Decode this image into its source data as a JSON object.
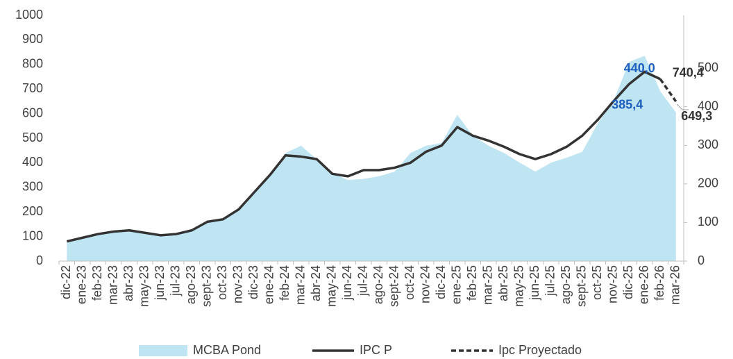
{
  "chart_data": {
    "type": "combo",
    "categories": [
      "dic-22",
      "ene-23",
      "feb-23",
      "mar-23",
      "abr-23",
      "may-23",
      "jun-23",
      "jul-23",
      "ago-23",
      "sept-23",
      "oct-23",
      "nov-23",
      "dic-23",
      "ene-24",
      "feb-24",
      "mar-24",
      "abr-24",
      "may-24",
      "jun-24",
      "jul-24",
      "ago-24",
      "sept-24",
      "oct-24",
      "nov-24",
      "dic-24",
      "ene-25",
      "feb-25",
      "mar-25",
      "abr-25",
      "may-25",
      "jun-25",
      "jul-25",
      "ago-25",
      "sept-25",
      "oct-25",
      "nov-25",
      "dic-25",
      "ene-26",
      "feb-26",
      "mar-26"
    ],
    "series": [
      {
        "name": "MCBA Pond",
        "type": "area",
        "axis": "y2",
        "color": "#bfe4f2",
        "values": [
          51,
          60,
          70,
          76,
          80,
          73,
          67,
          70,
          80,
          102,
          108,
          134,
          178,
          223,
          280,
          299,
          264,
          229,
          210,
          213,
          220,
          232,
          280,
          299,
          306,
          379,
          325,
          299,
          280,
          255,
          232,
          255,
          268,
          283,
          357,
          414,
          516,
          532,
          440,
          385.4
        ],
        "value_labels": [
          null,
          null,
          null,
          null,
          null,
          null,
          null,
          null,
          null,
          null,
          null,
          null,
          null,
          null,
          null,
          null,
          null,
          null,
          null,
          null,
          null,
          null,
          null,
          null,
          null,
          null,
          null,
          null,
          null,
          null,
          null,
          null,
          null,
          null,
          null,
          null,
          null,
          null,
          "440,0",
          "385,4"
        ],
        "label_color": "#1f5fbf"
      },
      {
        "name": "IPC P",
        "type": "line",
        "color": "#333333",
        "values": [
          80,
          95,
          110,
          120,
          125,
          115,
          105,
          110,
          125,
          160,
          170,
          210,
          280,
          350,
          430,
          425,
          415,
          355,
          345,
          370,
          370,
          380,
          400,
          445,
          470,
          545,
          510,
          490,
          465,
          435,
          415,
          435,
          465,
          510,
          575,
          650,
          720,
          770,
          740.4,
          null
        ]
      },
      {
        "name": "Ipc Proyectado",
        "type": "line",
        "dashed": true,
        "color": "#333333",
        "values": [
          null,
          null,
          null,
          null,
          null,
          null,
          null,
          null,
          null,
          null,
          null,
          null,
          null,
          null,
          null,
          null,
          null,
          null,
          null,
          null,
          null,
          null,
          null,
          null,
          null,
          null,
          null,
          null,
          null,
          null,
          null,
          null,
          null,
          null,
          null,
          null,
          null,
          null,
          740.4,
          649.3
        ],
        "value_labels": [
          null,
          null,
          null,
          null,
          null,
          null,
          null,
          null,
          null,
          null,
          null,
          null,
          null,
          null,
          null,
          null,
          null,
          null,
          null,
          null,
          null,
          null,
          null,
          null,
          null,
          null,
          null,
          null,
          null,
          null,
          null,
          null,
          null,
          null,
          null,
          null,
          null,
          null,
          "740,4",
          "649,3"
        ],
        "label_color": "#333333"
      }
    ],
    "ylim": [
      0,
      1000
    ],
    "yticks": [
      0,
      100,
      200,
      300,
      400,
      500,
      600,
      700,
      800,
      900,
      1000
    ],
    "y2lim": [
      0,
      637
    ],
    "y2ticks": [
      0,
      100,
      200,
      300,
      400,
      500
    ],
    "legend": "bottom",
    "grid": false
  }
}
